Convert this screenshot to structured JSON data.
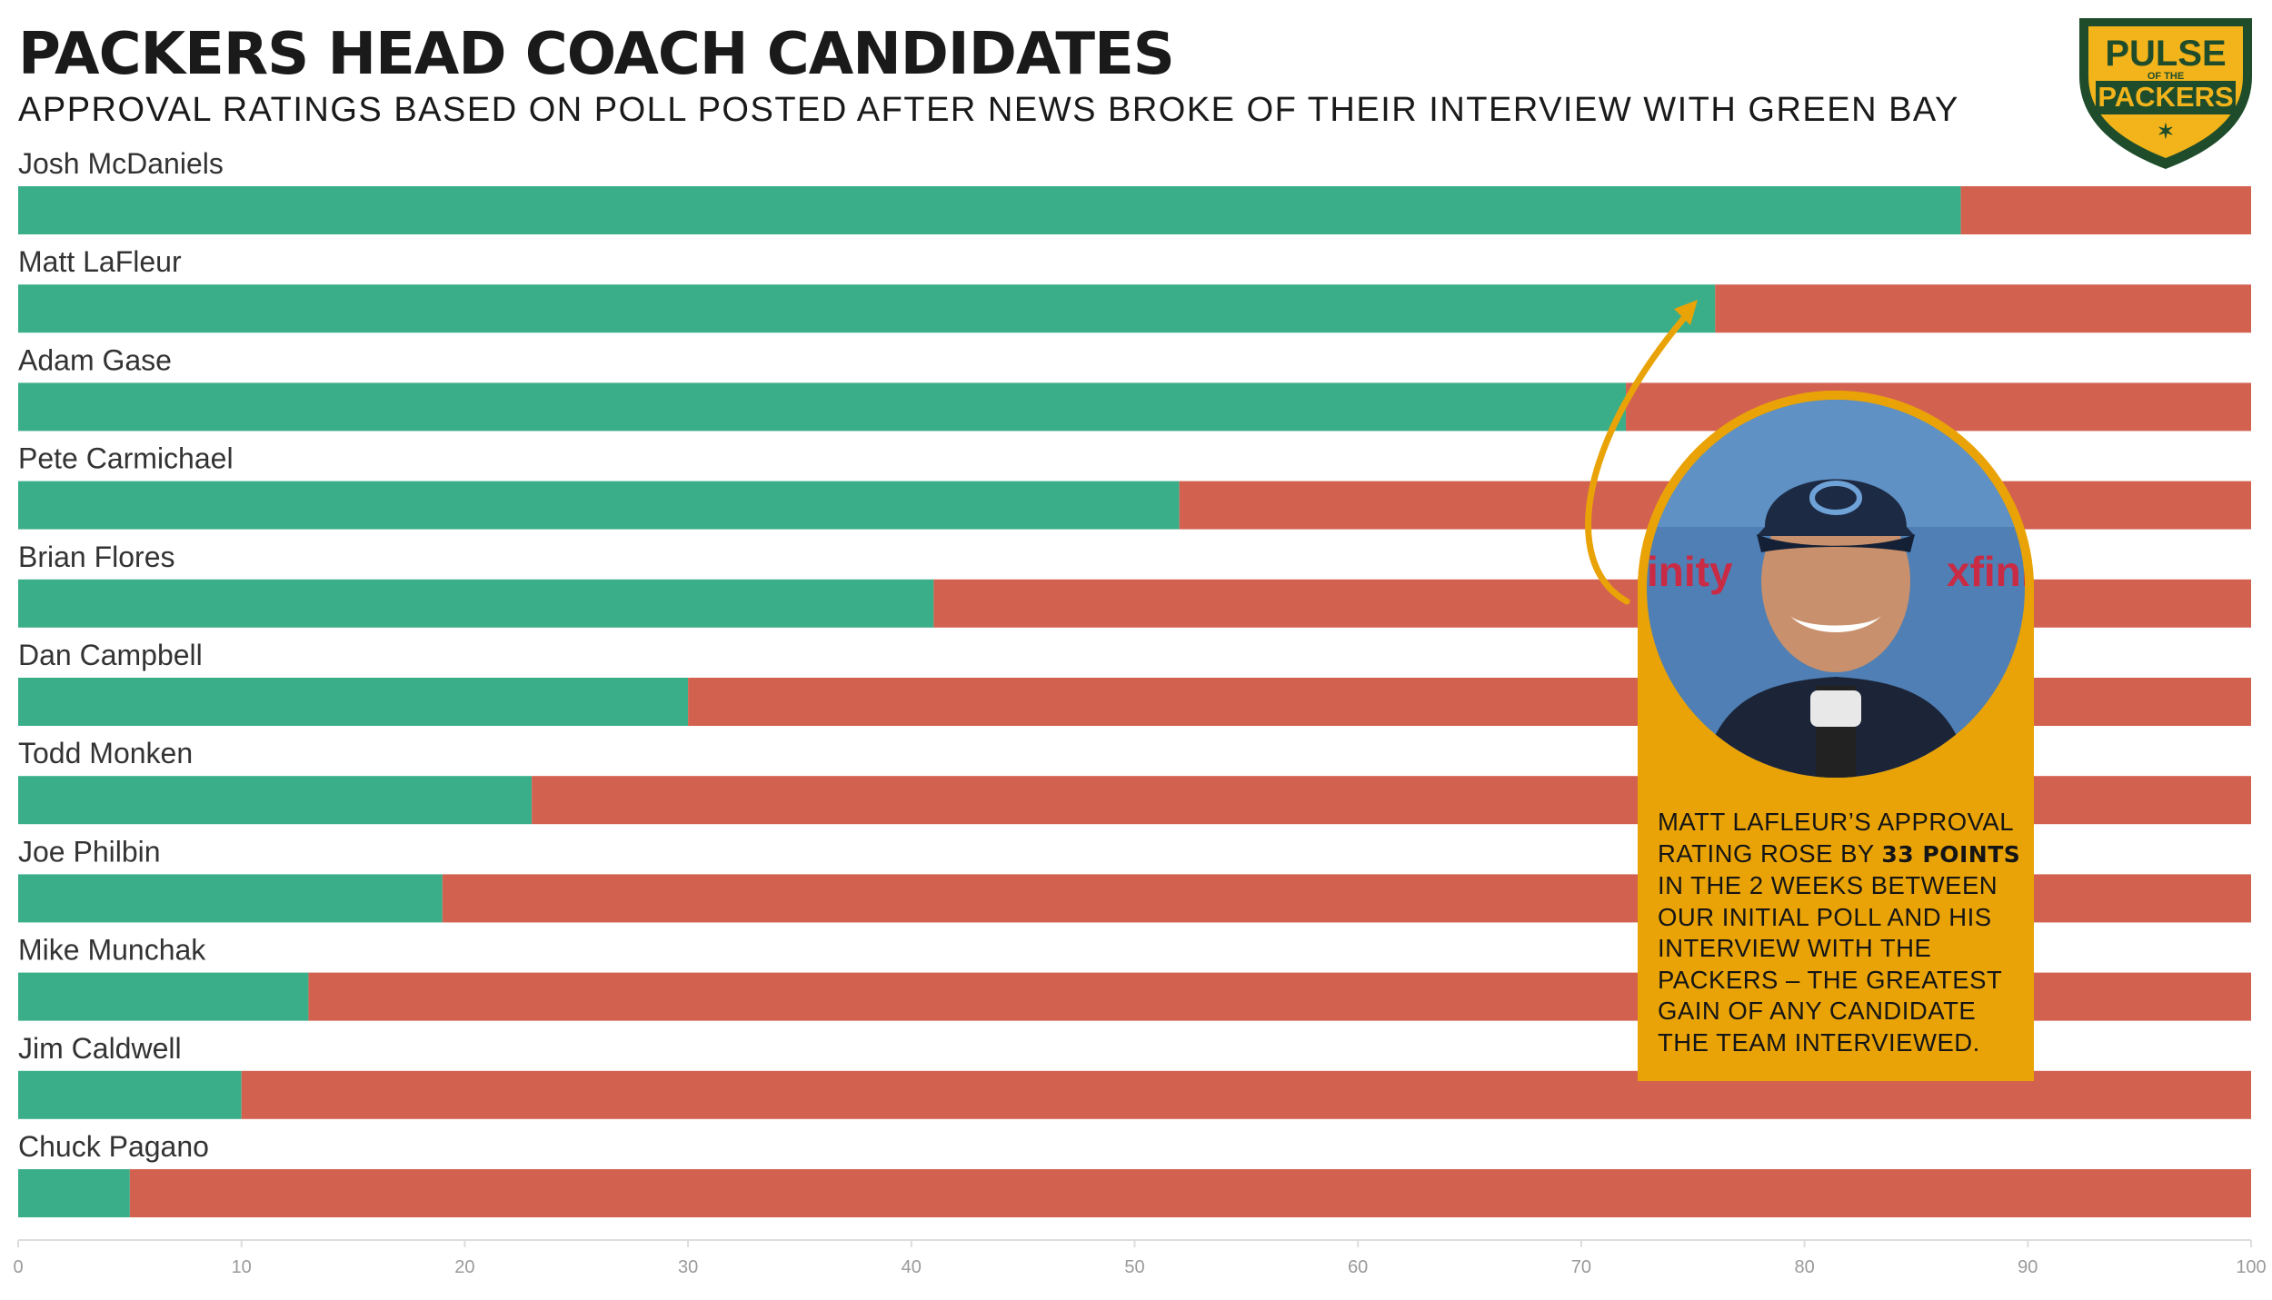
{
  "header": {
    "title": "PACKERS HEAD COACH CANDIDATES",
    "subtitle": "APPROVAL RATINGS BASED ON POLL POSTED AFTER NEWS BROKE OF THEIR INTERVIEW WITH GREEN BAY"
  },
  "logo": {
    "line1": "PULSE",
    "line2": "OF THE",
    "line3": "PACKERS",
    "colors": {
      "green": "#1f4d2b",
      "gold": "#f2b31b"
    }
  },
  "callout": {
    "photo_icon": "person-photo",
    "text_before": "MATT LAFLEUR’S APPROVAL RATING ROSE BY ",
    "text_bold": "33 POINTS",
    "text_after": " IN THE 2 WEEKS BETWEEN OUR INITIAL POLL AND HIS INTERVIEW WITH THE PACKERS – THE GREATEST GAIN OF ANY CANDIDATE THE TEAM INTERVIEWED.",
    "color": "#e9a307"
  },
  "chart_data": {
    "type": "bar",
    "orientation": "horizontal",
    "stacked": true,
    "categories": [
      "Josh McDaniels",
      "Matt LaFleur",
      "Adam Gase",
      "Pete Carmichael",
      "Brian Flores",
      "Dan Campbell",
      "Todd Monken",
      "Joe Philbin",
      "Mike Munchak",
      "Jim Caldwell",
      "Chuck Pagano"
    ],
    "values": [
      87,
      76,
      72,
      52,
      41,
      30,
      23,
      19,
      13,
      10,
      5
    ],
    "xlim": [
      0,
      100
    ],
    "xticks": [
      "0",
      "10",
      "20",
      "30",
      "40",
      "50",
      "60",
      "70",
      "80",
      "90",
      "100"
    ],
    "colors": {
      "approve": "#3aae88",
      "disapprove": "#d36150",
      "tick": "#9a9a9a",
      "axis": "#dddddd"
    },
    "grid": false,
    "legend": "none"
  }
}
